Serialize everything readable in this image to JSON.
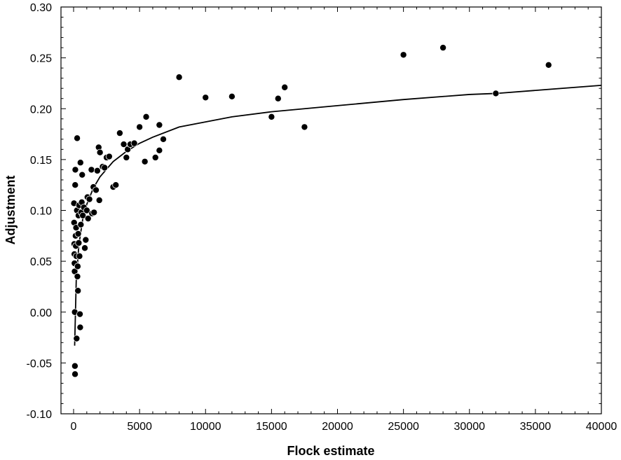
{
  "chart_data": {
    "type": "scatter",
    "title": "",
    "xlabel": "Flock estimate",
    "ylabel": "Adjustment",
    "xlim": [
      -1000,
      40000
    ],
    "ylim": [
      -0.1,
      0.3
    ],
    "x_ticks": [
      0,
      5000,
      10000,
      15000,
      20000,
      25000,
      30000,
      35000,
      40000
    ],
    "y_ticks": [
      -0.1,
      -0.05,
      0.0,
      0.05,
      0.1,
      0.15,
      0.2,
      0.25,
      0.3
    ],
    "x_tick_labels": [
      "0",
      "5000",
      "10000",
      "15000",
      "20000",
      "25000",
      "30000",
      "35000",
      "40000"
    ],
    "y_tick_labels": [
      "-0.10",
      "-0.05",
      "0.00",
      "0.05",
      "0.10",
      "0.15",
      "0.20",
      "0.25",
      "0.30"
    ],
    "grid": false,
    "legend": "none",
    "marker_color": "#000000",
    "series": [
      {
        "points": [
          [
            30,
            0.107
          ],
          [
            40,
            0.088
          ],
          [
            50,
            0.067
          ],
          [
            60,
            0.057
          ],
          [
            70,
            0.048
          ],
          [
            80,
            0.04
          ],
          [
            90,
            0.0
          ],
          [
            100,
            -0.053
          ],
          [
            110,
            -0.061
          ],
          [
            120,
            0.125
          ],
          [
            130,
            0.14
          ],
          [
            150,
            0.075
          ],
          [
            170,
            0.065
          ],
          [
            190,
            0.083
          ],
          [
            210,
            0.055
          ],
          [
            230,
            -0.026
          ],
          [
            250,
            0.1
          ],
          [
            270,
            0.171
          ],
          [
            290,
            0.035
          ],
          [
            310,
            0.045
          ],
          [
            330,
            0.021
          ],
          [
            350,
            0.077
          ],
          [
            370,
            0.095
          ],
          [
            390,
            0.068
          ],
          [
            420,
            0.105
          ],
          [
            450,
            0.055
          ],
          [
            480,
            -0.002
          ],
          [
            500,
            -0.015
          ],
          [
            520,
            0.147
          ],
          [
            550,
            0.086
          ],
          [
            580,
            0.098
          ],
          [
            620,
            0.108
          ],
          [
            650,
            0.135
          ],
          [
            700,
            0.095
          ],
          [
            780,
            0.103
          ],
          [
            850,
            0.063
          ],
          [
            920,
            0.071
          ],
          [
            1000,
            0.1
          ],
          [
            1050,
            0.113
          ],
          [
            1100,
            0.092
          ],
          [
            1200,
            0.111
          ],
          [
            1350,
            0.14
          ],
          [
            1400,
            0.097
          ],
          [
            1500,
            0.123
          ],
          [
            1550,
            0.098
          ],
          [
            1700,
            0.12
          ],
          [
            1800,
            0.139
          ],
          [
            1900,
            0.162
          ],
          [
            1950,
            0.11
          ],
          [
            2000,
            0.157
          ],
          [
            2200,
            0.143
          ],
          [
            2350,
            0.142
          ],
          [
            2500,
            0.152
          ],
          [
            2700,
            0.153
          ],
          [
            3000,
            0.123
          ],
          [
            3200,
            0.125
          ],
          [
            3500,
            0.176
          ],
          [
            3800,
            0.165
          ],
          [
            4000,
            0.152
          ],
          [
            4100,
            0.16
          ],
          [
            4300,
            0.165
          ],
          [
            4600,
            0.166
          ],
          [
            5000,
            0.182
          ],
          [
            5400,
            0.148
          ],
          [
            5500,
            0.192
          ],
          [
            6200,
            0.152
          ],
          [
            6500,
            0.159
          ],
          [
            6500,
            0.184
          ],
          [
            6800,
            0.17
          ],
          [
            8000,
            0.231
          ],
          [
            10000,
            0.211
          ],
          [
            12000,
            0.212
          ],
          [
            15000,
            0.192
          ],
          [
            15500,
            0.21
          ],
          [
            16000,
            0.221
          ],
          [
            17500,
            0.182
          ],
          [
            25000,
            0.253
          ],
          [
            28000,
            0.26
          ],
          [
            32000,
            0.215
          ],
          [
            36000,
            0.243
          ]
        ]
      }
    ],
    "fit_curve": {
      "type": "logarithmic",
      "x": [
        80,
        200,
        400,
        700,
        1000,
        1500,
        2000,
        3000,
        4000,
        5000,
        6000,
        8000,
        10000,
        12000,
        15000,
        17500,
        20000,
        25000,
        30000,
        32000,
        35000,
        40000
      ],
      "y": [
        -0.033,
        0.031,
        0.066,
        0.092,
        0.106,
        0.122,
        0.133,
        0.148,
        0.158,
        0.166,
        0.172,
        0.182,
        0.187,
        0.192,
        0.197,
        0.2,
        0.203,
        0.209,
        0.214,
        0.215,
        0.218,
        0.223
      ]
    }
  }
}
